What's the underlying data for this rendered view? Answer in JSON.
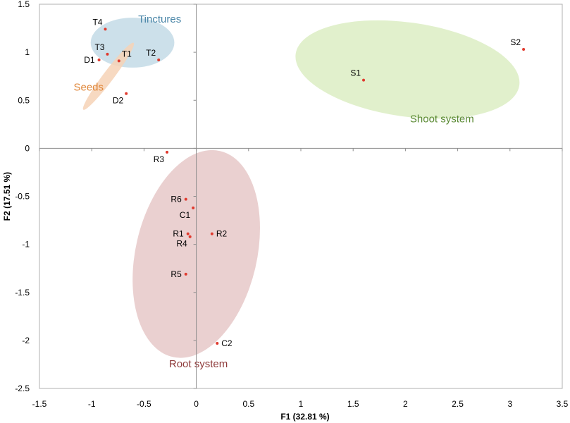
{
  "chart_data": {
    "type": "scatter",
    "title": "",
    "xlabel": "F1 (32.81 %)",
    "ylabel": "F2 (17.51 %)",
    "xlim": [
      -1.5,
      3.5
    ],
    "ylim": [
      -2.5,
      1.5
    ],
    "xticks": [
      -1.5,
      -1,
      -0.5,
      0,
      0.5,
      1,
      1.5,
      2,
      2.5,
      3,
      3.5
    ],
    "yticks": [
      -2.5,
      -2,
      -1.5,
      -1,
      -0.5,
      0,
      0.5,
      1,
      1.5
    ],
    "xtick_labels": [
      "-1.5",
      "-1",
      "-0.5",
      "0",
      "0.5",
      "1",
      "1.5",
      "2",
      "2.5",
      "3",
      "3.5"
    ],
    "ytick_labels": [
      "-2.5",
      "-2",
      "-1.5",
      "-1",
      "-0.5",
      "0",
      "0.5",
      "1",
      "1.5"
    ],
    "grid": false,
    "point_color": "#e03a2e",
    "points": [
      {
        "label": "T4",
        "x": -0.87,
        "y": 1.24,
        "label_pos": "above-left"
      },
      {
        "label": "T3",
        "x": -0.85,
        "y": 0.98,
        "label_pos": "above-left"
      },
      {
        "label": "T1",
        "x": -0.74,
        "y": 0.91,
        "label_pos": "above-right"
      },
      {
        "label": "T2",
        "x": -0.36,
        "y": 0.92,
        "label_pos": "above-left"
      },
      {
        "label": "D1",
        "x": -0.93,
        "y": 0.92,
        "label_pos": "left"
      },
      {
        "label": "D2",
        "x": -0.67,
        "y": 0.57,
        "label_pos": "below-left"
      },
      {
        "label": "S1",
        "x": 1.6,
        "y": 0.71,
        "label_pos": "above-left"
      },
      {
        "label": "S2",
        "x": 3.13,
        "y": 1.03,
        "label_pos": "above-left"
      },
      {
        "label": "R3",
        "x": -0.28,
        "y": -0.04,
        "label_pos": "below-left"
      },
      {
        "label": "R6",
        "x": -0.1,
        "y": -0.53,
        "label_pos": "left"
      },
      {
        "label": "C1",
        "x": -0.03,
        "y": -0.62,
        "label_pos": "below-left"
      },
      {
        "label": "R1",
        "x": -0.08,
        "y": -0.89,
        "label_pos": "left"
      },
      {
        "label": "R4",
        "x": -0.06,
        "y": -0.92,
        "label_pos": "below-left"
      },
      {
        "label": "R2",
        "x": 0.15,
        "y": -0.89,
        "label_pos": "right"
      },
      {
        "label": "R5",
        "x": -0.1,
        "y": -1.31,
        "label_pos": "left"
      },
      {
        "label": "C2",
        "x": 0.2,
        "y": -2.03,
        "label_pos": "right"
      }
    ],
    "groups": [
      {
        "name": "Tinctures",
        "color": "#4a86a8",
        "fill": "#c3dbe6",
        "label_x": -0.35,
        "label_y": 1.31,
        "ellipse": {
          "cx": -0.61,
          "cy": 1.1,
          "rx": 0.4,
          "ry": 0.26,
          "angle_deg": 0
        }
      },
      {
        "name": "Seeds",
        "color": "#e0873a",
        "fill": "#f6d2b6",
        "label_x": -1.03,
        "label_y": 0.6,
        "ellipse": {
          "cx": -0.84,
          "cy": 0.75,
          "rx": 0.4,
          "ry": 0.055,
          "angle_deg": -53
        }
      },
      {
        "name": "Shoot system",
        "color": "#5a8a33",
        "fill": "#dcedc3",
        "label_x": 2.35,
        "label_y": 0.27,
        "ellipse": {
          "cx": 2.02,
          "cy": 0.82,
          "rx": 1.08,
          "ry": 0.49,
          "angle_deg": 8
        }
      },
      {
        "name": "Root system",
        "color": "#8e3a3a",
        "fill": "#e6c8c8",
        "label_x": 0.02,
        "label_y": -2.28,
        "ellipse": {
          "cx": 0.0,
          "cy": -1.1,
          "rx": 0.58,
          "ry": 1.1,
          "angle_deg": 13
        }
      }
    ]
  }
}
